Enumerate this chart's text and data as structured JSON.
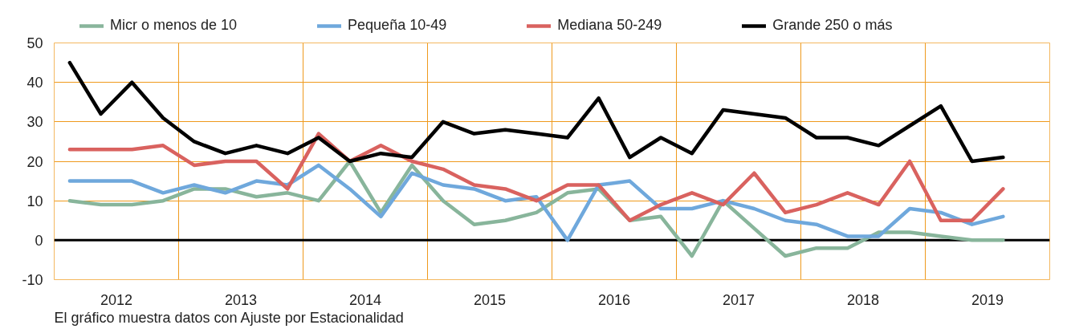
{
  "chart_data": {
    "type": "line",
    "line_style": "solid",
    "grid": true,
    "legend": "top",
    "x": [
      2012.125,
      2012.375,
      2012.625,
      2012.875,
      2013.125,
      2013.375,
      2013.625,
      2013.875,
      2014.125,
      2014.375,
      2014.625,
      2014.875,
      2015.125,
      2015.375,
      2015.625,
      2015.875,
      2016.125,
      2016.375,
      2016.625,
      2016.875,
      2017.125,
      2017.375,
      2017.625,
      2017.875,
      2018.125,
      2018.375,
      2018.625,
      2018.875,
      2019.125,
      2019.375,
      2019.625
    ],
    "xlim": [
      2012,
      2020
    ],
    "xticks": [
      {
        "value": 2012.5,
        "label": "2012"
      },
      {
        "value": 2013,
        "label": null
      },
      {
        "value": 2013.5,
        "label": "2013"
      },
      {
        "value": 2014,
        "label": null
      },
      {
        "value": 2014.5,
        "label": "2014"
      },
      {
        "value": 2015,
        "label": null
      },
      {
        "value": 2015.5,
        "label": "2015"
      },
      {
        "value": 2016,
        "label": null
      },
      {
        "value": 2016.5,
        "label": "2016"
      },
      {
        "value": 2017,
        "label": null
      },
      {
        "value": 2017.5,
        "label": "2017"
      },
      {
        "value": 2018,
        "label": null
      },
      {
        "value": 2018.5,
        "label": "2018"
      },
      {
        "value": 2019,
        "label": null
      },
      {
        "value": 2019.5,
        "label": "2019"
      }
    ],
    "ylim": [
      -10,
      50
    ],
    "yticks": [
      -10,
      0,
      10,
      20,
      30,
      40,
      50
    ],
    "ref_lines": [
      {
        "axis": "y",
        "value": 0,
        "color": "#000000"
      }
    ],
    "annotations": [
      "El gráfico muestra datos con Ajuste por Estacionalidad"
    ],
    "series": [
      {
        "name": "Micr o menos de 10",
        "color": "#88b59b",
        "values": [
          10,
          9,
          9,
          10,
          13,
          13,
          11,
          12,
          10,
          20,
          7,
          19,
          10,
          4,
          5,
          7,
          12,
          13,
          5,
          6,
          -4,
          10,
          3,
          -4,
          -2,
          -2,
          2,
          2,
          1,
          0,
          0
        ]
      },
      {
        "name": "Pequeña 10-49",
        "color": "#6fa8dc",
        "values": [
          15,
          15,
          15,
          12,
          14,
          12,
          15,
          14,
          19,
          13,
          6,
          17,
          14,
          13,
          10,
          11,
          0,
          14,
          15,
          8,
          8,
          10,
          8,
          5,
          4,
          1,
          1,
          8,
          7,
          4,
          6
        ]
      },
      {
        "name": "Mediana 50-249",
        "color": "#d9625f",
        "values": [
          23,
          23,
          23,
          24,
          19,
          20,
          20,
          13,
          27,
          20,
          24,
          20,
          18,
          14,
          13,
          10,
          14,
          14,
          5,
          9,
          12,
          9,
          17,
          7,
          9,
          12,
          9,
          20,
          5,
          5,
          13
        ]
      },
      {
        "name": "Grande 250 o más",
        "color": "#000000",
        "values": [
          45,
          32,
          40,
          31,
          25,
          22,
          24,
          22,
          26,
          20,
          22,
          21,
          30,
          27,
          28,
          27,
          26,
          36,
          21,
          26,
          22,
          33,
          32,
          31,
          26,
          26,
          24,
          29,
          34,
          20,
          21
        ]
      }
    ]
  }
}
